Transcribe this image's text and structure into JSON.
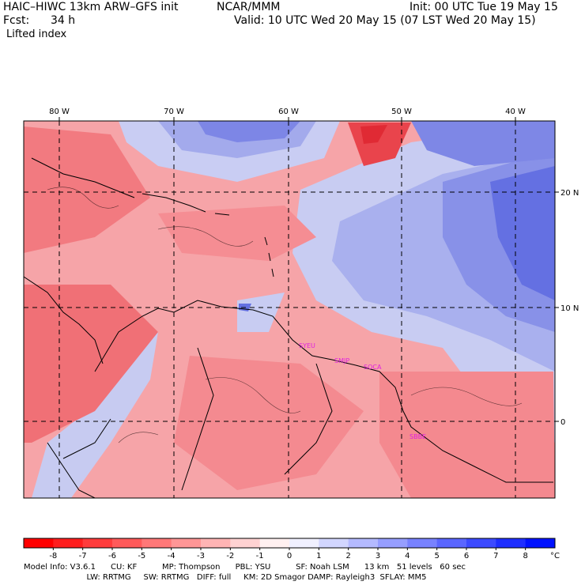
{
  "header": {
    "title": "HAIC–HIWC 13km ARW–GFS init",
    "org": "NCAR/MMM",
    "init": "Init: 00 UTC Tue 19 May 15",
    "fcst_label": "Fcst:",
    "fcst_value": "34 h",
    "valid": "Valid: 10 UTC Wed 20 May 15 (07 LST Wed 20 May 15)",
    "field": "Lifted index"
  },
  "map": {
    "lon_labels": [
      "80 W",
      "70 W",
      "60 W",
      "50 W",
      "40 W"
    ],
    "lat_labels": [
      "20 N",
      "10 N",
      "0"
    ],
    "stations": [
      "SYEU",
      "SMJP",
      "SOCA",
      "SBBE"
    ],
    "colors": {
      "land_border": "#000000",
      "neg_strong": "#e8404a",
      "neg_mid": "#f47a82",
      "neg_light": "#f9c0c4",
      "pos_light": "#c8ccf0",
      "pos_mid": "#8890e8",
      "pos_strong": "#5060e0",
      "station": "#e020e0"
    }
  },
  "colorbar": {
    "labels": [
      "-8",
      "-7",
      "-6",
      "-5",
      "-4",
      "-3",
      "-2",
      "-1",
      "0",
      "1",
      "2",
      "3",
      "4",
      "5",
      "6",
      "7",
      "8"
    ],
    "unit": "°C",
    "colors": [
      "#ff0000",
      "#ff2828",
      "#ff4848",
      "#ff6464",
      "#ff8080",
      "#ff9c9c",
      "#ffb8b8",
      "#ffd4d4",
      "#ffffff",
      "#d4d8ff",
      "#b8bcff",
      "#9ca2ff",
      "#8088ff",
      "#646cff",
      "#4850ff",
      "#2834ff",
      "#0018ff"
    ]
  },
  "model_info": {
    "line1": "Model Info: V3.6.1      CU: KF          MP: Thompson      PBL: YSU          SF: Noah LSM      13 km   51 levels   60 sec",
    "line2": "                         LW: RRTMG     SW: RRTMG   DIFF: full     KM: 2D Smagor DAMP: Rayleigh3  SFLAY: MM5"
  }
}
